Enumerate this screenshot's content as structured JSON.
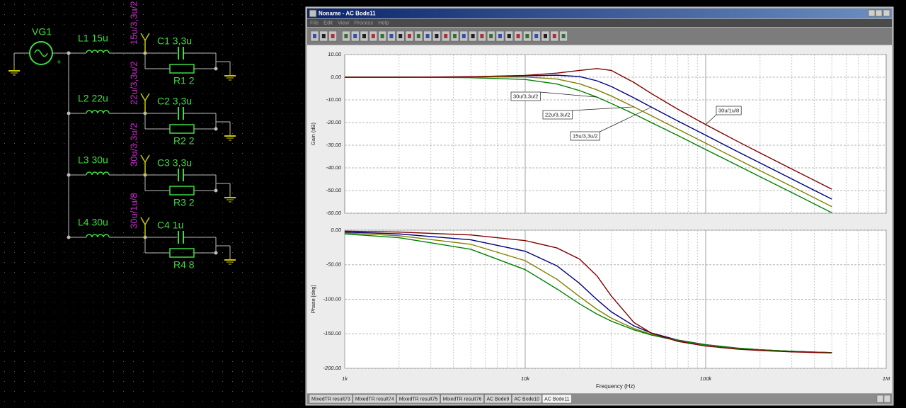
{
  "schematic": {
    "source": "VG1",
    "polarity": "+",
    "rows": [
      {
        "inductor": "L1 15u",
        "probe": "15u/3,3u/2",
        "capacitor": "C1 3,3u",
        "resistor": "R1 2"
      },
      {
        "inductor": "L2 22u",
        "probe": "22u/3,3u/2",
        "capacitor": "C2 3,3u",
        "resistor": "R2 2"
      },
      {
        "inductor": "L3 30u",
        "probe": "30u/3,3u/2",
        "capacitor": "C3 3,3u",
        "resistor": "R3 2"
      },
      {
        "inductor": "L4 30u",
        "probe": "30u/1u/8",
        "capacitor": "C4 1u",
        "resistor": "R4 8"
      }
    ]
  },
  "window": {
    "title": "Noname - AC Bode11",
    "menu": [
      "File",
      "Edit",
      "View",
      "Process",
      "Help"
    ],
    "tabs": [
      "MixedTR result73",
      "MixedTR result74",
      "MixedTR result75",
      "MixedTR result76",
      "AC Bode9",
      "AC Bode10",
      "AC Bode11"
    ]
  },
  "chart_data": [
    {
      "type": "line",
      "ylabel": "Gain (dB)",
      "log_x": true,
      "grid": true,
      "x": [
        1000,
        2000,
        5000,
        10000,
        15000,
        20000,
        25000,
        30000,
        40000,
        50000,
        70000,
        100000,
        150000,
        200000,
        300000,
        500000
      ],
      "xlim": [
        1000,
        1000000
      ],
      "ylim": [
        -60,
        10
      ],
      "yticks": [
        {
          "value": 10,
          "label": "10.00"
        },
        {
          "value": 0,
          "label": "0.00"
        },
        {
          "value": -10,
          "label": "-10.00"
        },
        {
          "value": -20,
          "label": "-20.00"
        },
        {
          "value": -30,
          "label": "-30.00"
        },
        {
          "value": -40,
          "label": "-40.00"
        },
        {
          "value": -50,
          "label": "-50.00"
        },
        {
          "value": -60,
          "label": "-60.00"
        }
      ],
      "series": [
        {
          "name": "15u/3,3u/2",
          "color": "#000080",
          "values": [
            0.0,
            0.0,
            0.2,
            0.6,
            0.9,
            0.3,
            -1.6,
            -4.1,
            -9.1,
            -13.2,
            -19.3,
            -25.6,
            -32.8,
            -37.8,
            -44.9,
            -53.8
          ]
        },
        {
          "name": "22u/3,3u/2",
          "color": "#808000",
          "values": [
            0.0,
            0.0,
            0.1,
            0.1,
            -0.8,
            -2.9,
            -5.6,
            -8.3,
            -13.1,
            -17.0,
            -22.9,
            -29.1,
            -36.2,
            -41.2,
            -48.2,
            -57.1
          ]
        },
        {
          "name": "30u/3,3u/2",
          "color": "#008000",
          "values": [
            0.0,
            0.0,
            -0.2,
            -1.0,
            -3.0,
            -5.9,
            -8.8,
            -11.6,
            -16.2,
            -20.0,
            -25.7,
            -31.9,
            -38.9,
            -43.9,
            -50.9,
            -59.8
          ]
        },
        {
          "name": "30u/1u/8",
          "color": "#800000",
          "values": [
            0.0,
            0.0,
            0.2,
            0.8,
            1.8,
            3.0,
            3.8,
            3.0,
            -2.3,
            -7.2,
            -14.1,
            -20.9,
            -28.3,
            -33.4,
            -40.5,
            -49.4
          ]
        }
      ]
    },
    {
      "type": "line",
      "ylabel": "Phase [deg]",
      "xlabel": "Frequency (Hz)",
      "log_x": true,
      "grid": true,
      "x": [
        1000,
        2000,
        5000,
        10000,
        15000,
        20000,
        25000,
        30000,
        40000,
        50000,
        70000,
        100000,
        150000,
        200000,
        300000,
        500000
      ],
      "xlim": [
        1000,
        1000000
      ],
      "xticks": [
        {
          "value": 1000,
          "label": "1k"
        },
        {
          "value": 10000,
          "label": "10k"
        },
        {
          "value": 100000,
          "label": "100k"
        },
        {
          "value": 1000000,
          "label": "1M"
        }
      ],
      "ylim": [
        -200,
        0
      ],
      "yticks": [
        {
          "value": 0,
          "label": "0.00"
        },
        {
          "value": -50,
          "label": "-50.00"
        },
        {
          "value": -100,
          "label": "-100.00"
        },
        {
          "value": -150,
          "label": "-150.00"
        },
        {
          "value": -200,
          "label": "-200.00"
        }
      ],
      "series": [
        {
          "color": "#000080",
          "values": [
            -2.7,
            -5.4,
            -13.9,
            -30.4,
            -51.6,
            -77.0,
            -100.6,
            -118.2,
            -138.5,
            -148.8,
            -159.0,
            -165.7,
            -170.7,
            -173.0,
            -175.4,
            -177.2
          ]
        },
        {
          "color": "#808000",
          "values": [
            -4.0,
            -8.0,
            -20.4,
            -44.1,
            -71.1,
            -96.1,
            -114.6,
            -127.3,
            -142.4,
            -150.7,
            -159.6,
            -166.0,
            -170.7,
            -173.1,
            -175.4,
            -177.2
          ]
        },
        {
          "color": "#008000",
          "values": [
            -5.4,
            -10.8,
            -27.6,
            -57.1,
            -85.1,
            -106.6,
            -121.5,
            -131.7,
            -144.3,
            -151.7,
            -160.0,
            -166.1,
            -170.8,
            -173.1,
            -175.4,
            -177.2
          ]
        },
        {
          "color": "#800000",
          "values": [
            -1.4,
            -2.7,
            -6.9,
            -15.0,
            -25.7,
            -41.8,
            -66.2,
            -95.3,
            -133.5,
            -149.0,
            -161.0,
            -167.7,
            -172.2,
            -174.2,
            -176.2,
            -177.7
          ]
        }
      ]
    }
  ]
}
